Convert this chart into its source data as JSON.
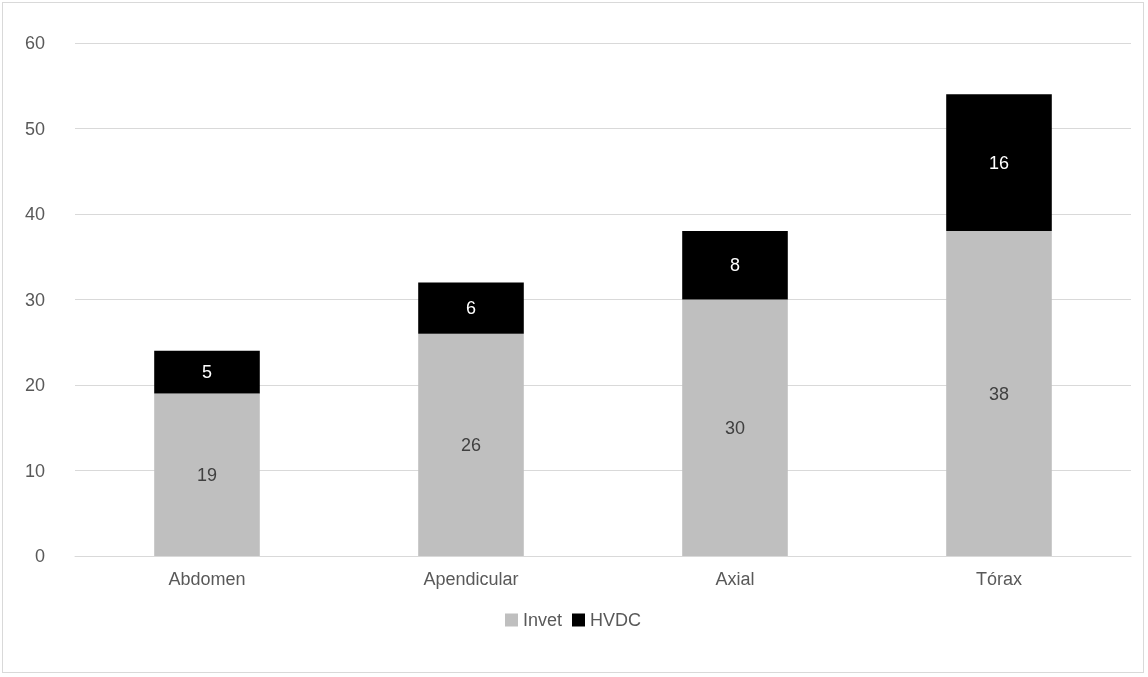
{
  "chart_data": {
    "type": "bar",
    "stacked": true,
    "categories": [
      "Abdomen",
      "Apendicular",
      "Axial",
      "Tórax"
    ],
    "series": [
      {
        "name": "Invet",
        "color": "#bfbfbf",
        "values": [
          19,
          26,
          30,
          38
        ]
      },
      {
        "name": "HVDC",
        "color": "#000000",
        "values": [
          5,
          6,
          8,
          16
        ]
      }
    ],
    "ylim": [
      0,
      60
    ],
    "yticks": [
      0,
      10,
      20,
      30,
      40,
      50,
      60
    ],
    "grid": "y",
    "legend": "bottom",
    "data_labels": true
  }
}
